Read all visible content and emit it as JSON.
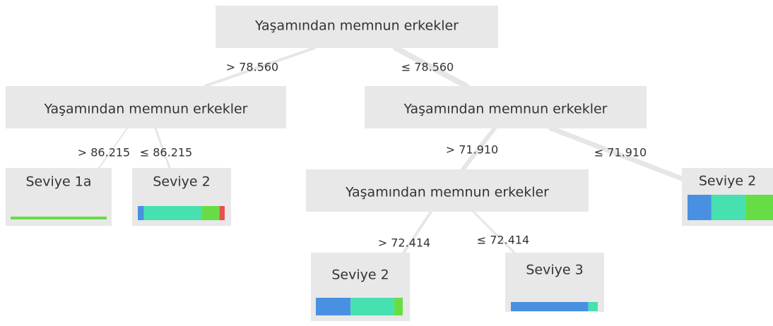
{
  "nodes": [
    {
      "label": "Yaşamından memnun erkekler"
    },
    {
      "label": "Yaşamından memnun erkekler"
    },
    {
      "label": "Yaşamından memnun erkekler"
    },
    {
      "label": "Seviye 1a",
      "distribution": [
        {
          "color": "#66dd44",
          "value": 100
        }
      ]
    },
    {
      "label": "Seviye 2",
      "distribution": [
        {
          "color": "#4a90e2",
          "value": 7
        },
        {
          "color": "#47e0b0",
          "value": 67
        },
        {
          "color": "#66dd44",
          "value": 20
        },
        {
          "color": "#e8504a",
          "value": 6
        }
      ]
    },
    {
      "label": "Yaşamından memnun erkekler"
    },
    {
      "label": "Seviye 2",
      "distribution": [
        {
          "color": "#4a90e2",
          "value": 28
        },
        {
          "color": "#47e0b0",
          "value": 40
        },
        {
          "color": "#66dd44",
          "value": 32
        }
      ]
    },
    {
      "label": "Seviye 2",
      "distribution": [
        {
          "color": "#4a90e2",
          "value": 40
        },
        {
          "color": "#47e0b0",
          "value": 50
        },
        {
          "color": "#66dd44",
          "value": 10
        }
      ]
    },
    {
      "label": "Seviye 3",
      "distribution": [
        {
          "color": "#4a90e2",
          "value": 89
        },
        {
          "color": "#47e0b0",
          "value": 11
        }
      ]
    }
  ],
  "edges": [
    {
      "from": 0,
      "to": 1,
      "label": "> 78.560"
    },
    {
      "from": 0,
      "to": 2,
      "label": "≤ 78.560"
    },
    {
      "from": 1,
      "to": 3,
      "label": "> 86.215"
    },
    {
      "from": 1,
      "to": 4,
      "label": "≤ 86.215"
    },
    {
      "from": 2,
      "to": 5,
      "label": "> 71.910"
    },
    {
      "from": 2,
      "to": 6,
      "label": "≤ 71.910"
    },
    {
      "from": 5,
      "to": 7,
      "label": "> 72.414"
    },
    {
      "from": 5,
      "to": 8,
      "label": "≤ 72.414"
    }
  ]
}
